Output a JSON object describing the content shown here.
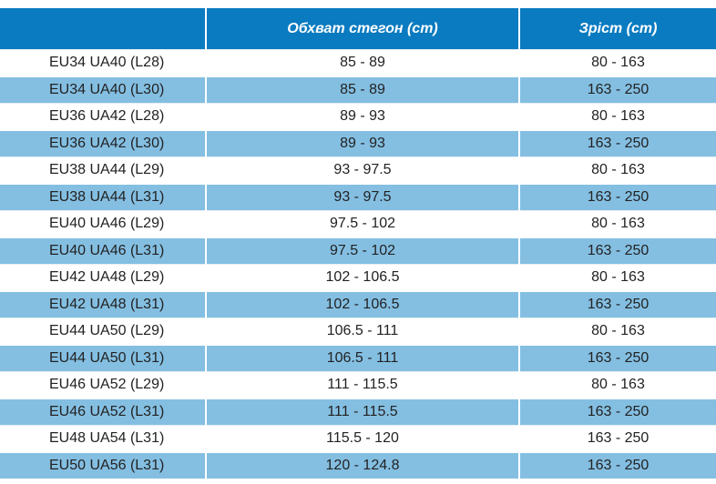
{
  "table": {
    "headers": [
      "",
      "Обхват стегон (cm)",
      "Зріст (cm)"
    ],
    "rows": [
      [
        "EU34 UA40 (L28)",
        "85 - 89",
        "80 - 163"
      ],
      [
        "EU34 UA40 (L30)",
        "85 - 89",
        "163 - 250"
      ],
      [
        "EU36 UA42 (L28)",
        "89 - 93",
        "80 - 163"
      ],
      [
        "EU36 UA42 (L30)",
        "89 - 93",
        "163 - 250"
      ],
      [
        "EU38 UA44 (L29)",
        "93 - 97.5",
        "80 - 163"
      ],
      [
        "EU38 UA44 (L31)",
        "93 - 97.5",
        "163 - 250"
      ],
      [
        "EU40 UA46 (L29)",
        "97.5 - 102",
        "80 - 163"
      ],
      [
        "EU40 UA46 (L31)",
        "97.5 - 102",
        "163 - 250"
      ],
      [
        "EU42 UA48 (L29)",
        "102 - 106.5",
        "80 - 163"
      ],
      [
        "EU42 UA48 (L31)",
        "102 - 106.5",
        "163 - 250"
      ],
      [
        "EU44 UA50 (L29)",
        "106.5 - 111",
        "80 - 163"
      ],
      [
        "EU44 UA50 (L31)",
        "106.5 - 111",
        "163 - 250"
      ],
      [
        "EU46 UA52 (L29)",
        "111 - 115.5",
        "80 - 163"
      ],
      [
        "EU46 UA52 (L31)",
        "111 - 115.5",
        "163 - 250"
      ],
      [
        "EU48 UA54 (L31)",
        "115.5 - 120",
        "163 - 250"
      ],
      [
        "EU50 UA56 (L31)",
        "120 - 124.8",
        "163 - 250"
      ]
    ]
  },
  "colors": {
    "header_bg": "#0a7bc0",
    "stripe_bg": "#84bfe2",
    "text": "#222222"
  }
}
